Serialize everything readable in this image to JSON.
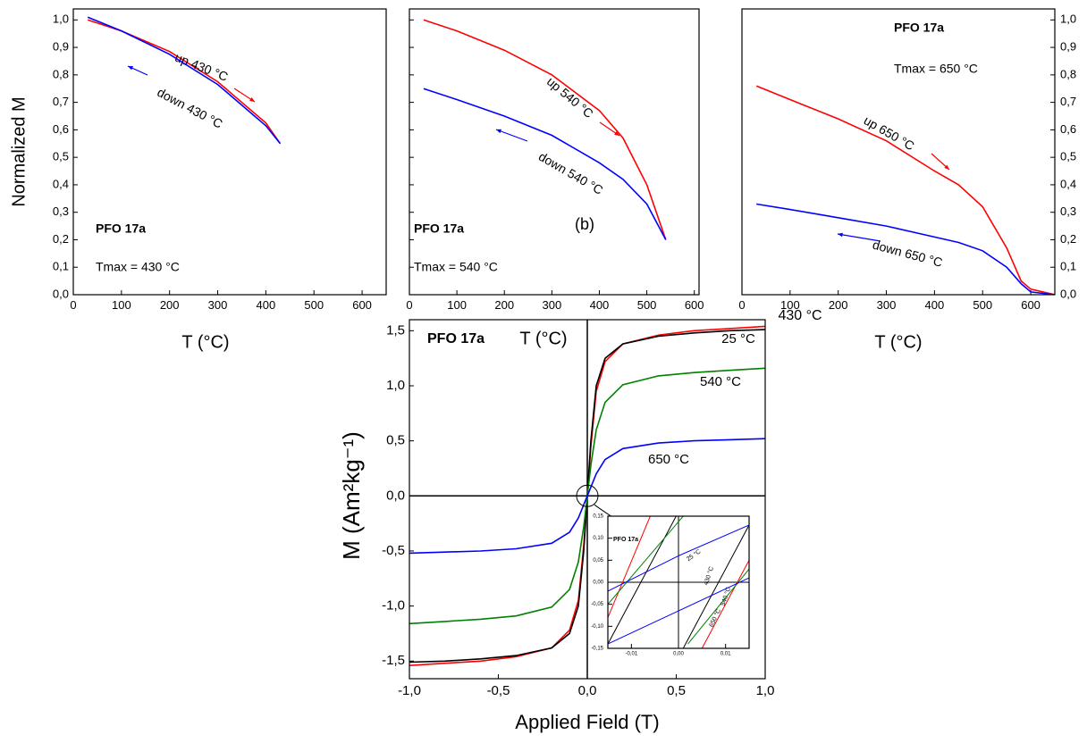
{
  "chart_data": [
    {
      "type": "line",
      "x_label": "T (°C)",
      "y_label": "Normalized M",
      "xlim": [
        0,
        650
      ],
      "xticks": [
        0,
        100,
        200,
        300,
        400,
        500,
        600
      ],
      "ylim": [
        0,
        1.04
      ],
      "yticks": [
        {
          "value": 0,
          "label": "0,0"
        },
        {
          "value": 0.1,
          "label": "0,1"
        },
        {
          "value": 0.2,
          "label": "0,2"
        },
        {
          "value": 0.3,
          "label": "0,3"
        },
        {
          "value": 0.4,
          "label": "0,4"
        },
        {
          "value": 0.5,
          "label": "0,5"
        },
        {
          "value": 0.6,
          "label": "0,6"
        },
        {
          "value": 0.7,
          "label": "0,7"
        },
        {
          "value": 0.8,
          "label": "0,8"
        },
        {
          "value": 0.9,
          "label": "0,9"
        },
        {
          "value": 1.0,
          "label": "1,0"
        }
      ],
      "annotations": [
        "PFO 17a",
        "Tmax = 430 °C"
      ],
      "series": [
        {
          "name": "up 430 °C",
          "color": "#ff0000",
          "x": [
            30,
            100,
            200,
            300,
            400,
            430
          ],
          "values": [
            1.0,
            0.96,
            0.885,
            0.775,
            0.625,
            0.55
          ]
        },
        {
          "name": "down 430 °C",
          "color": "#0000ff",
          "x": [
            30,
            100,
            200,
            300,
            400,
            430
          ],
          "values": [
            1.01,
            0.96,
            0.875,
            0.765,
            0.615,
            0.55
          ]
        }
      ]
    },
    {
      "type": "line",
      "x_label": "T (°C)",
      "xlim": [
        0,
        610
      ],
      "xticks": [
        0,
        100,
        200,
        300,
        400,
        500,
        600
      ],
      "ylim": [
        0,
        1.04
      ],
      "yticks": [
        {
          "value": 0,
          "label": "0,0"
        },
        {
          "value": 0.1,
          "label": "0,1"
        },
        {
          "value": 0.2,
          "label": "0,2"
        },
        {
          "value": 0.3,
          "label": "0,3"
        },
        {
          "value": 0.4,
          "label": "0,4"
        },
        {
          "value": 0.5,
          "label": "0,5"
        },
        {
          "value": 0.6,
          "label": "0,6"
        },
        {
          "value": 0.7,
          "label": "0,7"
        },
        {
          "value": 0.8,
          "label": "0,8"
        },
        {
          "value": 0.9,
          "label": "0,9"
        },
        {
          "value": 1.0,
          "label": "1,0"
        }
      ],
      "annotations": [
        "PFO 17a",
        "Tmax = 540 °C",
        "(b)"
      ],
      "series": [
        {
          "name": "up 540 °C",
          "color": "#ff0000",
          "x": [
            30,
            100,
            200,
            300,
            400,
            450,
            500,
            540
          ],
          "values": [
            1.0,
            0.96,
            0.89,
            0.8,
            0.67,
            0.57,
            0.4,
            0.2
          ]
        },
        {
          "name": "down 540 °C",
          "color": "#0000ff",
          "x": [
            30,
            100,
            200,
            300,
            400,
            450,
            500,
            540
          ],
          "values": [
            0.75,
            0.71,
            0.65,
            0.58,
            0.48,
            0.42,
            0.33,
            0.2
          ]
        }
      ]
    },
    {
      "type": "line",
      "x_label": "T (°C)",
      "xlim": [
        0,
        650
      ],
      "xticks": [
        0,
        100,
        200,
        300,
        400,
        500,
        600
      ],
      "ylim": [
        0,
        1.04
      ],
      "yticks": [
        {
          "value": 0,
          "label": "0,0"
        },
        {
          "value": 0.1,
          "label": "0,1"
        },
        {
          "value": 0.2,
          "label": "0,2"
        },
        {
          "value": 0.3,
          "label": "0,3"
        },
        {
          "value": 0.4,
          "label": "0,4"
        },
        {
          "value": 0.5,
          "label": "0,5"
        },
        {
          "value": 0.6,
          "label": "0,6"
        },
        {
          "value": 0.7,
          "label": "0,7"
        },
        {
          "value": 0.8,
          "label": "0,8"
        },
        {
          "value": 0.9,
          "label": "0,9"
        },
        {
          "value": 1.0,
          "label": "1,0"
        }
      ],
      "annotations": [
        "PFO 17a",
        "Tmax = 650 °C"
      ],
      "series": [
        {
          "name": "up 650 °C",
          "color": "#ff0000",
          "x": [
            30,
            100,
            200,
            300,
            400,
            450,
            500,
            550,
            580,
            600,
            650
          ],
          "values": [
            0.76,
            0.71,
            0.64,
            0.56,
            0.45,
            0.4,
            0.32,
            0.17,
            0.05,
            0.02,
            0.0
          ]
        },
        {
          "name": "down 650 °C",
          "color": "#0000ff",
          "x": [
            30,
            100,
            200,
            300,
            400,
            450,
            500,
            550,
            580,
            600,
            650
          ],
          "values": [
            0.33,
            0.31,
            0.28,
            0.25,
            0.21,
            0.19,
            0.16,
            0.1,
            0.04,
            0.01,
            0.0
          ]
        }
      ]
    },
    {
      "type": "line",
      "x_label": "Applied Field (T)",
      "y_label": "M (Am²kg⁻¹)",
      "xlim": [
        -1,
        1
      ],
      "xticks": [
        {
          "value": -1,
          "label": "-1,0"
        },
        {
          "value": -0.5,
          "label": "-0,5"
        },
        {
          "value": 0,
          "label": "0,0"
        },
        {
          "value": 0.5,
          "label": "0,5"
        },
        {
          "value": 1,
          "label": "1,0"
        }
      ],
      "ylim": [
        -1.66,
        1.6
      ],
      "yticks": [
        {
          "value": -1.5,
          "label": "-1,5"
        },
        {
          "value": -1,
          "label": "-1,0"
        },
        {
          "value": -0.5,
          "label": "-0,5"
        },
        {
          "value": 0,
          "label": "0,0"
        },
        {
          "value": 0.5,
          "label": "0,5"
        },
        {
          "value": 1,
          "label": "1,0"
        },
        {
          "value": 1.5,
          "label": "1,5"
        }
      ],
      "annotations": [
        "PFO 17a"
      ],
      "series": [
        {
          "name": "430 °C",
          "color": "#ff0000",
          "x": [
            -1,
            -0.8,
            -0.6,
            -0.4,
            -0.2,
            -0.1,
            -0.05,
            -0.02,
            0,
            0.02,
            0.05,
            0.1,
            0.2,
            0.4,
            0.6,
            0.8,
            1
          ],
          "values": [
            -1.54,
            -1.52,
            -1.5,
            -1.46,
            -1.38,
            -1.22,
            -0.95,
            -0.45,
            0,
            0.45,
            0.95,
            1.22,
            1.38,
            1.46,
            1.5,
            1.52,
            1.54
          ]
        },
        {
          "name": "25 °C",
          "color": "#000000",
          "x": [
            -1,
            -0.8,
            -0.6,
            -0.4,
            -0.2,
            -0.1,
            -0.05,
            -0.02,
            0,
            0.02,
            0.05,
            0.1,
            0.2,
            0.4,
            0.6,
            0.8,
            1
          ],
          "values": [
            -1.51,
            -1.5,
            -1.48,
            -1.45,
            -1.38,
            -1.25,
            -1.0,
            -0.5,
            0,
            0.5,
            1.0,
            1.25,
            1.38,
            1.45,
            1.48,
            1.5,
            1.51
          ]
        },
        {
          "name": "540 °C",
          "color": "#008000",
          "x": [
            -1,
            -0.8,
            -0.6,
            -0.4,
            -0.2,
            -0.1,
            -0.05,
            -0.02,
            0,
            0.02,
            0.05,
            0.1,
            0.2,
            0.4,
            0.6,
            0.8,
            1
          ],
          "values": [
            -1.16,
            -1.14,
            -1.12,
            -1.09,
            -1.01,
            -0.85,
            -0.6,
            -0.28,
            0,
            0.28,
            0.6,
            0.85,
            1.01,
            1.09,
            1.12,
            1.14,
            1.16
          ]
        },
        {
          "name": "650 °C",
          "color": "#0000ff",
          "x": [
            -1,
            -0.8,
            -0.6,
            -0.4,
            -0.2,
            -0.1,
            -0.05,
            -0.02,
            0,
            0.02,
            0.05,
            0.1,
            0.2,
            0.4,
            0.6,
            0.8,
            1
          ],
          "values": [
            -0.52,
            -0.51,
            -0.5,
            -0.48,
            -0.43,
            -0.33,
            -0.2,
            -0.08,
            0,
            0.08,
            0.2,
            0.33,
            0.43,
            0.48,
            0.5,
            0.51,
            0.52
          ]
        }
      ]
    },
    {
      "type": "line",
      "xlim": [
        -0.015,
        0.015
      ],
      "xticks": [
        {
          "value": -0.01,
          "label": "-0,01"
        },
        {
          "value": 0,
          "label": "0,00"
        },
        {
          "value": 0.01,
          "label": "0,01"
        }
      ],
      "ylim": [
        -0.15,
        0.15
      ],
      "yticks": [
        {
          "value": -0.15,
          "label": "-0,15"
        },
        {
          "value": -0.1,
          "label": "-0,10"
        },
        {
          "value": -0.05,
          "label": "-0,05"
        },
        {
          "value": 0,
          "label": "0,00"
        },
        {
          "value": 0.05,
          "label": "0,05"
        },
        {
          "value": 0.1,
          "label": "0,10"
        },
        {
          "value": 0.15,
          "label": "0,15"
        }
      ],
      "annotations": [
        "PFO 17a"
      ],
      "series": [
        {
          "name": "25 °C",
          "color": "#000000",
          "x": [
            -0.015,
            -0.0005,
            null,
            0.001,
            0.015
          ],
          "values": [
            -0.14,
            0.15,
            null,
            -0.15,
            0.13
          ]
        },
        {
          "name": "430 °C",
          "color": "#ff0000",
          "x": [
            -0.015,
            -0.006,
            null,
            0.005,
            0.015
          ],
          "values": [
            -0.08,
            0.15,
            null,
            -0.15,
            0.05
          ]
        },
        {
          "name": "540 °C",
          "color": "#008000",
          "x": [
            -0.015,
            0.001,
            null,
            0.002,
            0.015
          ],
          "values": [
            -0.05,
            0.15,
            null,
            -0.14,
            0.03
          ]
        },
        {
          "name": "650 °C",
          "color": "#0000ff",
          "x": [
            -0.015,
            0,
            0.015,
            null,
            -0.015,
            0,
            0.015
          ],
          "values": [
            -0.02,
            0.06,
            0.13,
            null,
            -0.14,
            -0.065,
            0.01
          ]
        }
      ]
    }
  ]
}
